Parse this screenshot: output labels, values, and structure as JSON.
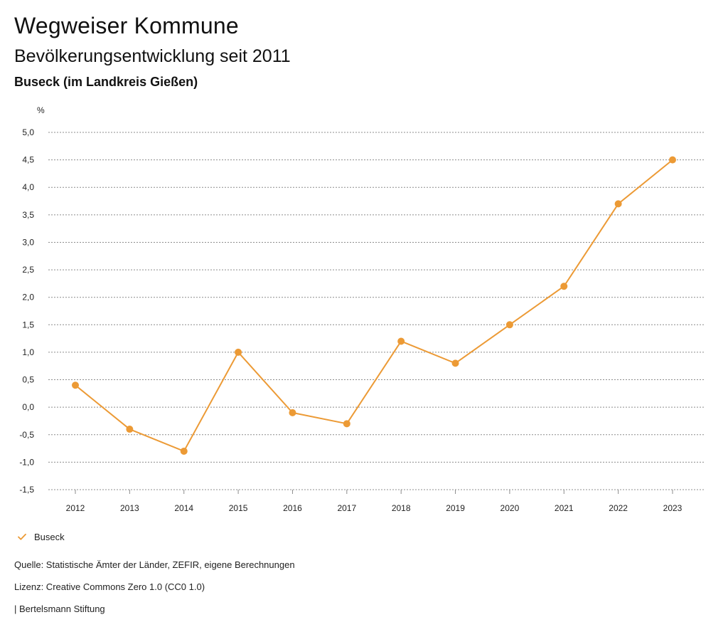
{
  "header": {
    "title": "Wegweiser Kommune",
    "subtitle": "Bevölkerungsentwicklung seit 2011",
    "region": "Buseck (im Landkreis Gießen)"
  },
  "chart_data": {
    "type": "line",
    "title": "Bevölkerungsentwicklung seit 2011",
    "subtitle": "Buseck (im Landkreis Gießen)",
    "unit_label": "%",
    "xlabel": "",
    "ylabel": "%",
    "x": [
      "2012",
      "2013",
      "2014",
      "2015",
      "2016",
      "2017",
      "2018",
      "2019",
      "2020",
      "2021",
      "2022",
      "2023"
    ],
    "series": [
      {
        "name": "Buseck",
        "values": [
          0.4,
          -0.4,
          -0.8,
          1.0,
          -0.1,
          -0.3,
          1.2,
          0.8,
          1.5,
          2.2,
          3.7,
          4.5
        ],
        "color": "#ec9a35"
      }
    ],
    "ylim": [
      -1.5,
      5.0
    ],
    "ytick_values": [
      5.0,
      4.5,
      4.0,
      3.5,
      3.0,
      2.5,
      2.0,
      1.5,
      1.0,
      0.5,
      0.0,
      -0.5,
      -1.0,
      -1.5
    ],
    "ytick_labels": [
      "5,0",
      "4,5",
      "4,0",
      "3,5",
      "3,0",
      "2,5",
      "2,0",
      "1,5",
      "1,0",
      "0,5",
      "0,0",
      "-0,5",
      "-1,0",
      "-1,5"
    ],
    "grid": true,
    "legend_position": "bottom-left"
  },
  "legend": {
    "label": "Buseck",
    "icon": "check-icon",
    "color": "#ec9a35"
  },
  "footer": {
    "source": "Quelle: Statistische Ämter der Länder, ZEFIR, eigene Berechnungen",
    "license": "Lizenz: Creative Commons Zero 1.0 (CC0 1.0)",
    "publisher": "| Bertelsmann Stiftung"
  }
}
